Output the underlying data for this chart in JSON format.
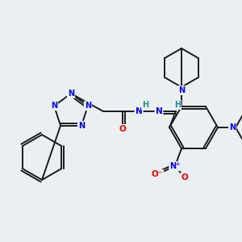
{
  "background_color": "#eaeff2",
  "bond_color": "#1a1a1a",
  "atom_colors": {
    "N": "#0000ee",
    "O": "#ee0000",
    "C": "#1a1a1a",
    "H": "#2a8a8a"
  },
  "figsize": [
    3.0,
    3.0
  ],
  "dpi": 100
}
